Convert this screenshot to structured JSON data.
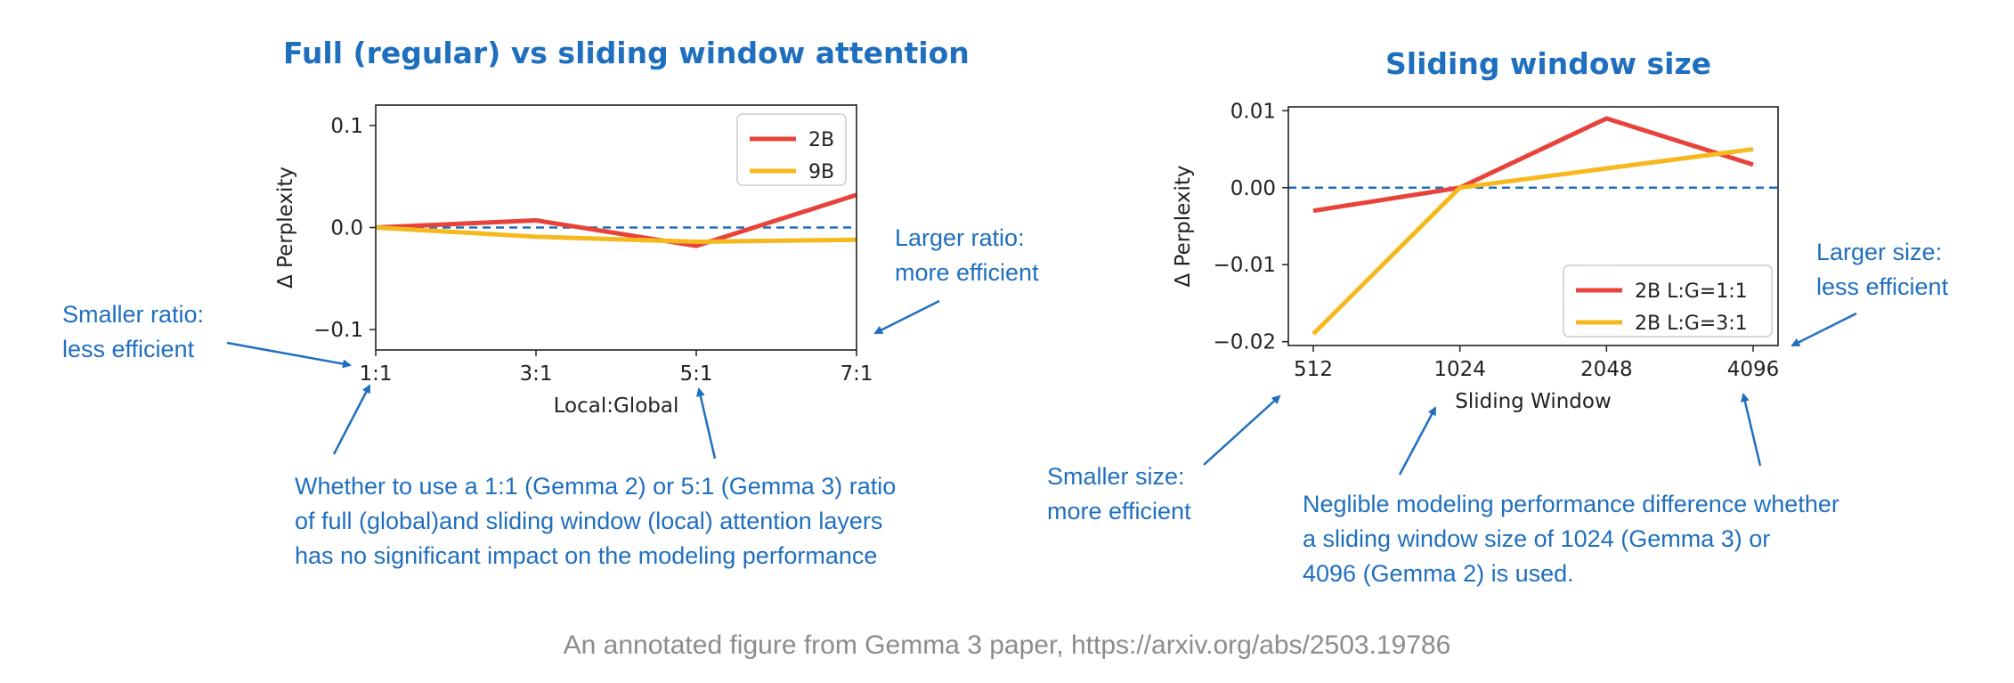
{
  "titles": {
    "left": "Full (regular) vs sliding window attention",
    "right": "Sliding window size"
  },
  "annotations": {
    "left_smaller": [
      "Smaller ratio:",
      "less efficient"
    ],
    "left_larger": [
      "Larger ratio:",
      "more efficient"
    ],
    "left_bottom": [
      "Whether to use a 1:1 (Gemma 2) or 5:1 (Gemma 3) ratio",
      "of full (global)and sliding window (local) attention layers",
      "has no significant  impact on the modeling performance"
    ],
    "right_smaller": [
      "Smaller size:",
      "more efficient"
    ],
    "right_larger": [
      "Larger size:",
      "less efficient"
    ],
    "right_bottom": [
      "Neglible modeling performance difference whether",
      "a sliding window size of 1024 (Gemma 3) or",
      "4096 (Gemma 2) is used."
    ]
  },
  "caption": "An annotated figure from Gemma 3 paper, https://arxiv.org/abs/2503.19786",
  "colors": {
    "red": "#e8433a",
    "yellow": "#f5b91e",
    "ref": "#1f6fbf",
    "annotation": "#1f6fbf"
  },
  "chart_data": [
    {
      "type": "line",
      "title": "Full (regular) vs sliding window attention",
      "xlabel": "Local:Global",
      "ylabel": "Δ Perplexity",
      "categories": [
        "1:1",
        "3:1",
        "5:1",
        "7:1"
      ],
      "yticks": [
        0.1,
        0.0,
        -0.1
      ],
      "ytick_labels": [
        "0.1",
        "0.0",
        "−0.1"
      ],
      "ylim": [
        -0.12,
        0.12
      ],
      "reference_line": 0,
      "legend_position": "top-right",
      "series": [
        {
          "name": "2B",
          "color": "#e8433a",
          "values": [
            0.0,
            0.007,
            -0.018,
            0.032
          ]
        },
        {
          "name": "9B",
          "color": "#f5b91e",
          "values": [
            0.0,
            -0.009,
            -0.014,
            -0.012
          ]
        }
      ]
    },
    {
      "type": "line",
      "title": "Sliding window size",
      "xlabel": "Sliding Window",
      "ylabel": "Δ Perplexity",
      "categories": [
        "512",
        "1024",
        "2048",
        "4096"
      ],
      "yticks": [
        0.01,
        0.0,
        -0.01,
        -0.02
      ],
      "ytick_labels": [
        "0.01",
        "0.00",
        "−0.01",
        "−0.02"
      ],
      "ylim": [
        -0.0205,
        0.0105
      ],
      "reference_line": 0,
      "legend_position": "bottom-right",
      "series": [
        {
          "name": "2B L:G=1:1",
          "color": "#e8433a",
          "values": [
            -0.003,
            0.0,
            0.009,
            0.003
          ]
        },
        {
          "name": "2B L:G=3:1",
          "color": "#f5b91e",
          "values": [
            -0.019,
            0.0,
            0.0025,
            0.005
          ]
        }
      ]
    }
  ]
}
